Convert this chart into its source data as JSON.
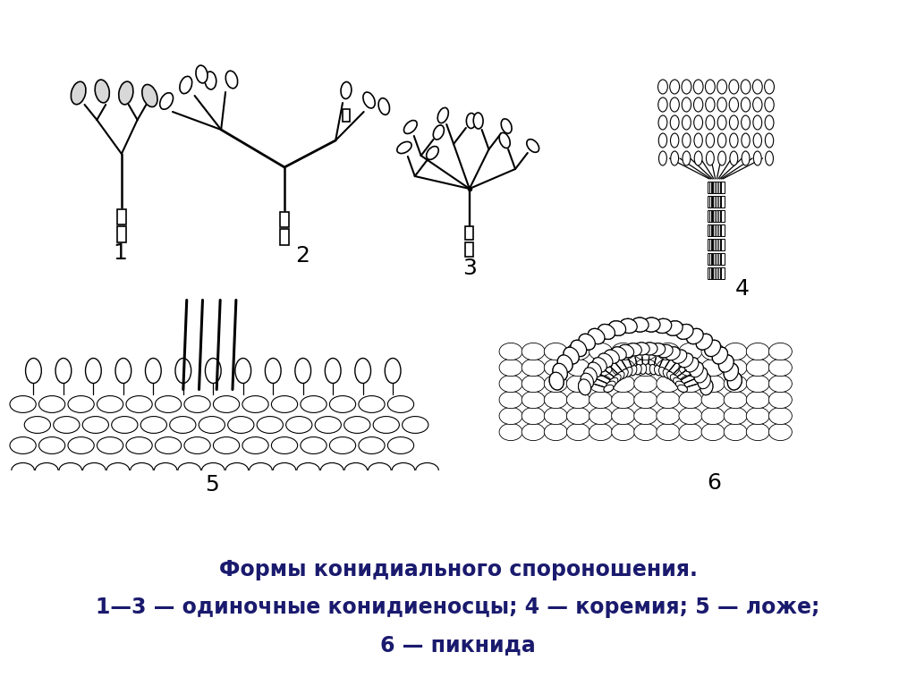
{
  "title_line1": "Формы конидиального спороношения.",
  "title_line2": "1—3 — одиночные конидиеносцы; 4 — коремия; 5 — ложе;",
  "title_line3": "6 — пикнида",
  "background_color": "#ffffff",
  "line_color": "#000000",
  "title_color": "#1a1a6e",
  "label_color": "#000000",
  "label_fontsize": 18,
  "title_fontsize": 17
}
